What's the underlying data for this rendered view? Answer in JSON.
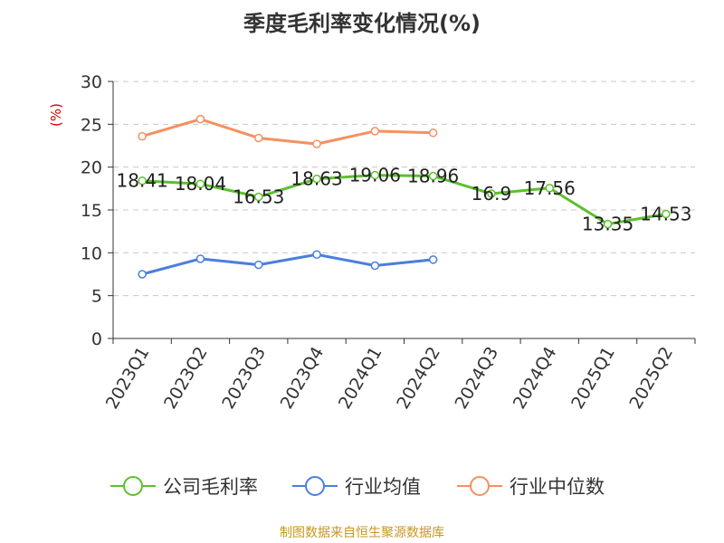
{
  "title": "季度毛利率变化情况(%)",
  "source": "制图数据来自恒生聚源数据库",
  "colors": {
    "company": "#5cc02e",
    "industry_avg": "#4a7fdc",
    "industry_median": "#f59060",
    "grid": "#c8c8c8",
    "axis": "#333333"
  },
  "chart_data": {
    "type": "line",
    "title": "季度毛利率变化情况(%)",
    "ylabel": "(%)",
    "xlabel": "",
    "ylim": [
      0,
      30
    ],
    "yticks": [
      0,
      5,
      10,
      15,
      20,
      25,
      30
    ],
    "grid": true,
    "legend_position": "bottom",
    "categories": [
      "2023Q1",
      "2023Q2",
      "2023Q3",
      "2023Q4",
      "2024Q1",
      "2024Q2",
      "2024Q3",
      "2024Q4",
      "2025Q1",
      "2025Q2"
    ],
    "series": [
      {
        "name": "公司毛利率",
        "color": "#5cc02e",
        "values": [
          18.41,
          18.04,
          16.53,
          18.63,
          19.06,
          18.96,
          16.9,
          17.56,
          13.35,
          14.53
        ],
        "labels": [
          "18.41",
          "18.04",
          "16.53",
          "18.63",
          "19.06",
          "18.96",
          "16.9",
          "17.56",
          "13.35",
          "14.53"
        ]
      },
      {
        "name": "行业均值",
        "color": "#4a7fdc",
        "values": [
          7.5,
          9.3,
          8.6,
          9.8,
          8.5,
          9.2,
          null,
          null,
          null,
          null
        ]
      },
      {
        "name": "行业中位数",
        "color": "#f59060",
        "values": [
          23.6,
          25.6,
          23.4,
          22.7,
          24.2,
          24.0,
          null,
          null,
          null,
          null
        ]
      }
    ]
  }
}
